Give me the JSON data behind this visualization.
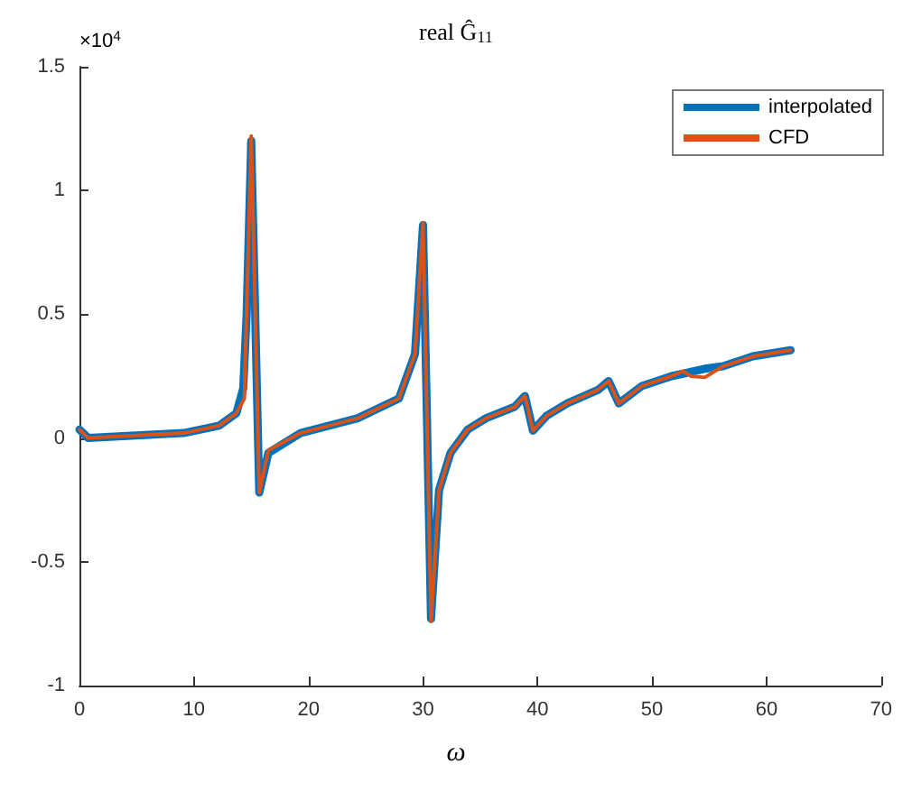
{
  "chart_data": {
    "type": "line",
    "title": "real Ĝ$_{11}$",
    "xlabel": "ω",
    "annotations": [
      "×10$^{4}$"
    ],
    "xlim": [
      0,
      70
    ],
    "xticks": [
      0,
      10,
      20,
      30,
      40,
      50,
      60,
      70
    ],
    "ylim": [
      -1,
      1.5
    ],
    "yticks": [
      -1,
      -0.5,
      0,
      0.5,
      1,
      1.5
    ],
    "grid": false,
    "legend": "top right",
    "marker": "none",
    "line_style": "solid",
    "series": [
      {
        "name": "interpolated",
        "color": "#0072bd",
        "x": [
          0,
          0.76,
          9.1,
          12.2,
          13.7,
          14.3,
          14.6,
          15.0,
          15.7,
          16.5,
          19.3,
          24.3,
          27.9,
          29.3,
          30.0,
          30.7,
          31.4,
          32.4,
          33.9,
          35.5,
          38.0,
          38.9,
          39.6,
          40.8,
          42.6,
          45.3,
          46.2,
          47.1,
          49.1,
          51.7,
          52.7,
          54.6,
          56.2,
          58.8,
          62.1
        ],
        "values": [
          0.034,
          0,
          0.02,
          0.05,
          0.1,
          0.2,
          0.5,
          1.2,
          -0.22,
          -0.06,
          0.02,
          0.08,
          0.16,
          0.34,
          0.86,
          -0.73,
          -0.21,
          -0.06,
          0.034,
          0.08,
          0.126,
          0.17,
          0.03,
          0.09,
          0.14,
          0.195,
          0.23,
          0.14,
          0.21,
          0.25,
          0.26,
          0.28,
          0.29,
          0.33,
          0.355
        ]
      },
      {
        "name": "CFD",
        "color": "#d95319",
        "x": [
          0,
          0.76,
          9.1,
          12.2,
          13.7,
          14.4,
          15.0,
          15.7,
          16.5,
          19.3,
          24.3,
          27.9,
          29.3,
          30.0,
          30.7,
          31.4,
          32.4,
          33.9,
          35.5,
          38.0,
          38.9,
          39.6,
          40.8,
          42.6,
          45.3,
          46.2,
          47.1,
          49.1,
          51.7,
          52.7,
          53.4,
          54.6,
          56.2,
          58.8,
          62.1
        ],
        "values": [
          0.034,
          0,
          0.02,
          0.05,
          0.1,
          0.16,
          1.22,
          -0.22,
          -0.05,
          0.02,
          0.08,
          0.16,
          0.34,
          0.87,
          -0.74,
          -0.21,
          -0.06,
          0.034,
          0.08,
          0.126,
          0.17,
          0.03,
          0.09,
          0.14,
          0.195,
          0.23,
          0.14,
          0.21,
          0.25,
          0.27,
          0.25,
          0.245,
          0.29,
          0.33,
          0.355
        ]
      }
    ]
  }
}
